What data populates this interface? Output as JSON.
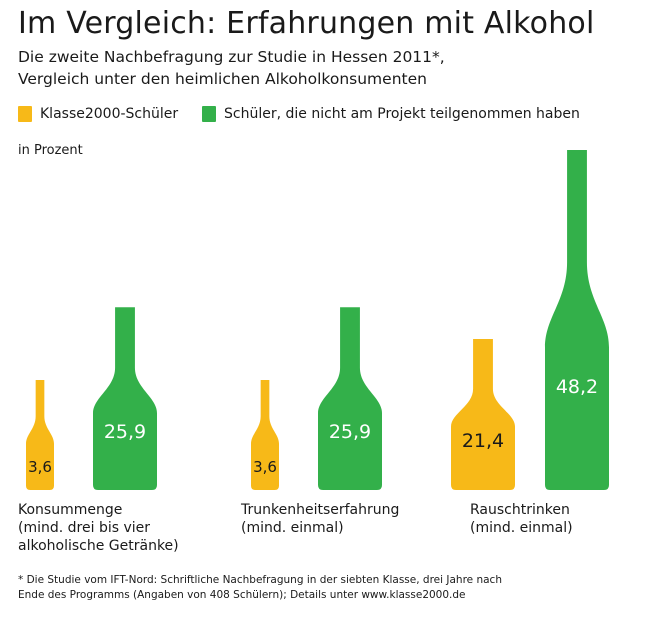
{
  "header": {
    "title": "Im Vergleich: Erfahrungen mit Alkohol",
    "subtitle_line1": "Die zweite Nachbefragung zur Studie in Hessen 2011*,",
    "subtitle_line2": "Vergleich unter den heimlichen Alkoholkonsumenten"
  },
  "unit_label": "in Prozent",
  "footnote": {
    "line1": "* Die Studie vom IFT-Nord: Schriftliche Nachbefragung in der siebten Klasse, drei Jahre nach",
    "line2": "Ende des Programms (Angaben von 408 Schülern); Details unter www.klasse2000.de"
  },
  "colors": {
    "yellow": "#F7B918",
    "green": "#33B04A"
  },
  "chart_data": {
    "type": "bar",
    "title": "Im Vergleich: Erfahrungen mit Alkohol",
    "categories": [
      "Konsummenge",
      "Trunkenheitserfahrung",
      "Rauschtrinken"
    ],
    "category_labels": [
      [
        "Konsummenge",
        "(mind. drei bis vier",
        "alkoholische Getränke)"
      ],
      [
        "Trunkenheitserfahrung",
        "(mind. einmal)"
      ],
      [
        "Rauschtrinken",
        "(mind. einmal)"
      ]
    ],
    "series": [
      {
        "name": "Klasse2000-Schüler",
        "color": "#F7B918",
        "values": [
          3.6,
          3.6,
          21.4
        ],
        "labels": [
          "3,6",
          "3,6",
          "21,4"
        ]
      },
      {
        "name": "Schüler, die nicht am Projekt teilgenommen haben",
        "color": "#33B04A",
        "values": [
          25.9,
          25.9,
          48.2
        ],
        "labels": [
          "25,9",
          "25,9",
          "48,2"
        ]
      }
    ],
    "ylim": [
      0,
      50
    ],
    "legend_position": "top"
  }
}
